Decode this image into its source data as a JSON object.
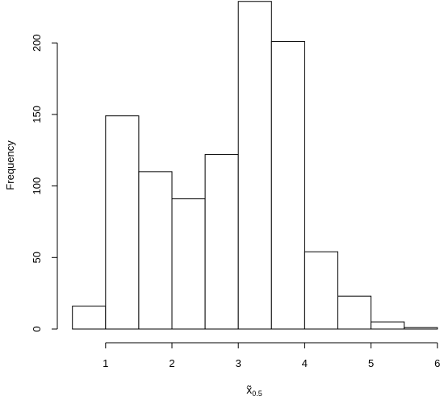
{
  "chart_data": {
    "type": "bar",
    "histogram": true,
    "bins": [
      {
        "x0": 0.5,
        "x1": 1.0,
        "count": 16
      },
      {
        "x0": 1.0,
        "x1": 1.5,
        "count": 149
      },
      {
        "x0": 1.5,
        "x1": 2.0,
        "count": 110
      },
      {
        "x0": 2.0,
        "x1": 2.5,
        "count": 91
      },
      {
        "x0": 2.5,
        "x1": 3.0,
        "count": 122
      },
      {
        "x0": 3.0,
        "x1": 3.5,
        "count": 229
      },
      {
        "x0": 3.5,
        "x1": 4.0,
        "count": 201
      },
      {
        "x0": 4.0,
        "x1": 4.5,
        "count": 54
      },
      {
        "x0": 4.5,
        "x1": 5.0,
        "count": 23
      },
      {
        "x0": 5.0,
        "x1": 5.5,
        "count": 5
      },
      {
        "x0": 5.5,
        "x1": 6.0,
        "count": 1
      }
    ],
    "xticks": [
      1,
      2,
      3,
      4,
      5,
      6
    ],
    "yticks": [
      0,
      50,
      100,
      150,
      200
    ],
    "xlim": [
      0.5,
      6.0
    ],
    "ylim": [
      0,
      229
    ],
    "xlabel": {
      "main": "x̃",
      "sub": "0.5"
    },
    "ylabel": "Frequency",
    "title": "",
    "grid": false,
    "colors": {
      "bar_fill": "#ffffff",
      "bar_stroke": "#000000",
      "axis": "#000000"
    }
  }
}
